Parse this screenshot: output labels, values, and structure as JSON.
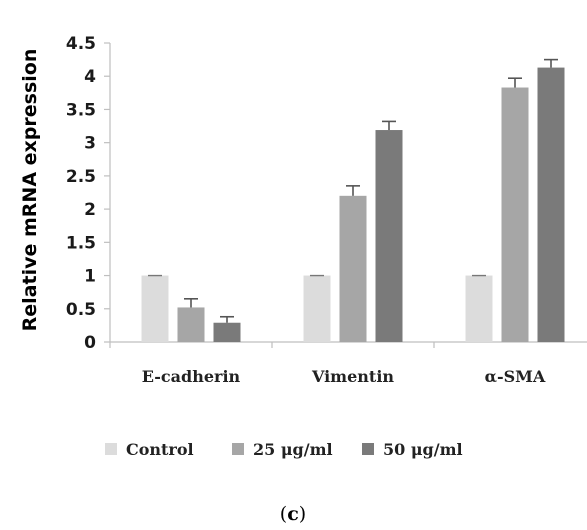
{
  "chart_data": {
    "type": "bar",
    "ylabel": "Relative mRNA expression",
    "categories": [
      "E-cadherin",
      "Vimentin",
      "α-SMA"
    ],
    "ylim": [
      0,
      4.5
    ],
    "yticks": [
      "0",
      "0.5",
      "1",
      "1.5",
      "2",
      "2.5",
      "3",
      "3.5",
      "4",
      "4.5"
    ],
    "series": [
      {
        "name": "Control",
        "color": "#dcdcdc",
        "values": [
          1.0,
          1.0,
          1.0
        ],
        "errors": [
          0.0,
          0.0,
          0.0
        ]
      },
      {
        "name": "25 μg/ml",
        "color": "#a6a6a6",
        "values": [
          0.52,
          2.2,
          3.83
        ],
        "errors": [
          0.13,
          0.15,
          0.14
        ]
      },
      {
        "name": "50 μg/ml",
        "color": "#7a7a7a",
        "values": [
          0.29,
          3.19,
          4.13
        ],
        "errors": [
          0.09,
          0.13,
          0.12
        ]
      }
    ],
    "legend_position": "bottom",
    "grid": false
  },
  "panel_label": {
    "open": "(",
    "letter": "c",
    "close": ")"
  }
}
